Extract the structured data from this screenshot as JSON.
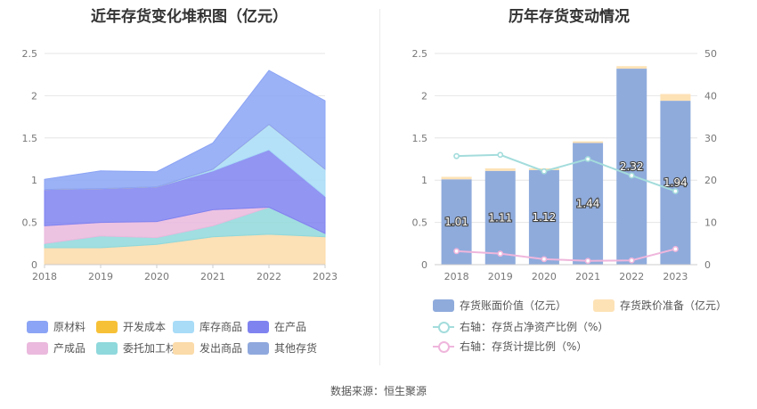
{
  "footer": {
    "source_label": "数据来源：恒生聚源"
  },
  "chart_data": [
    {
      "type": "area",
      "title": "近年存货变化堆积图（亿元）",
      "x": [
        "2018",
        "2019",
        "2020",
        "2021",
        "2022",
        "2023"
      ],
      "ylim": [
        0,
        2.5
      ],
      "yticks": [
        "0",
        "0.5",
        "1",
        "1.5",
        "2",
        "2.5"
      ],
      "stacked": true,
      "legend_position": "bottom",
      "series": [
        {
          "name": "原材料",
          "color": "#8ba4f5",
          "values": [
            0.12,
            0.21,
            0.18,
            0.31,
            0.64,
            0.81
          ]
        },
        {
          "name": "开发成本",
          "color": "#f7c137",
          "values": [
            0,
            0,
            0,
            0,
            0,
            0
          ]
        },
        {
          "name": "库存商品",
          "color": "#a8dcf7",
          "values": [
            0,
            0,
            0,
            0.02,
            0.3,
            0.32
          ]
        },
        {
          "name": "在产品",
          "color": "#7f83f0",
          "values": [
            0.43,
            0.4,
            0.41,
            0.46,
            0.68,
            0.44
          ]
        },
        {
          "name": "产成品",
          "color": "#eab9dd",
          "values": [
            0.21,
            0.16,
            0.19,
            0.19,
            0,
            0
          ]
        },
        {
          "name": "委托加工材料",
          "color": "#8fd8dc",
          "values": [
            0.05,
            0.14,
            0.08,
            0.13,
            0.32,
            0.04
          ]
        },
        {
          "name": "发出商品",
          "color": "#fbdba9",
          "values": [
            0.2,
            0.2,
            0.24,
            0.33,
            0.36,
            0.33
          ]
        },
        {
          "name": "其他存货",
          "color": "#8fa8dd",
          "values": [
            0,
            0,
            0,
            0,
            0,
            0
          ]
        }
      ],
      "legend_order": [
        "原材料",
        "开发成本",
        "库存商品",
        "在产品",
        "产成品",
        "委托加工材料",
        "发出商品",
        "其他存货"
      ]
    },
    {
      "type": "bar",
      "title": "历年存货变动情况",
      "categories": [
        "2018",
        "2019",
        "2020",
        "2021",
        "2022",
        "2023"
      ],
      "ylim": [
        0,
        2.5
      ],
      "yticks": [
        "0",
        "0.5",
        "1",
        "1.5",
        "2",
        "2.5"
      ],
      "y2lim": [
        0,
        50
      ],
      "y2ticks": [
        "0",
        "10",
        "20",
        "30",
        "40",
        "50"
      ],
      "legend_position": "bottom",
      "bars": [
        {
          "name": "存货账面价值（亿元）",
          "color": "#8fabdc",
          "values": [
            1.01,
            1.11,
            1.12,
            1.44,
            2.32,
            1.94
          ],
          "labels": [
            "1.01",
            "1.11",
            "1.12",
            "1.44",
            "2.32",
            "1.94"
          ]
        },
        {
          "name": "存货跌价准备（亿元）",
          "color": "#fde2b6",
          "values": [
            0.03,
            0.03,
            0.02,
            0.02,
            0.03,
            0.08
          ]
        }
      ],
      "lines": [
        {
          "name": "右轴：存货占净资产比例（%）",
          "color": "#a4dcdc",
          "values": [
            25.7,
            26.0,
            22.1,
            25.0,
            21.1,
            17.4
          ]
        },
        {
          "name": "右轴：存货计提比例（%）",
          "color": "#efb6dc",
          "values": [
            3.2,
            2.6,
            1.3,
            0.9,
            1.0,
            3.7
          ]
        }
      ]
    }
  ]
}
